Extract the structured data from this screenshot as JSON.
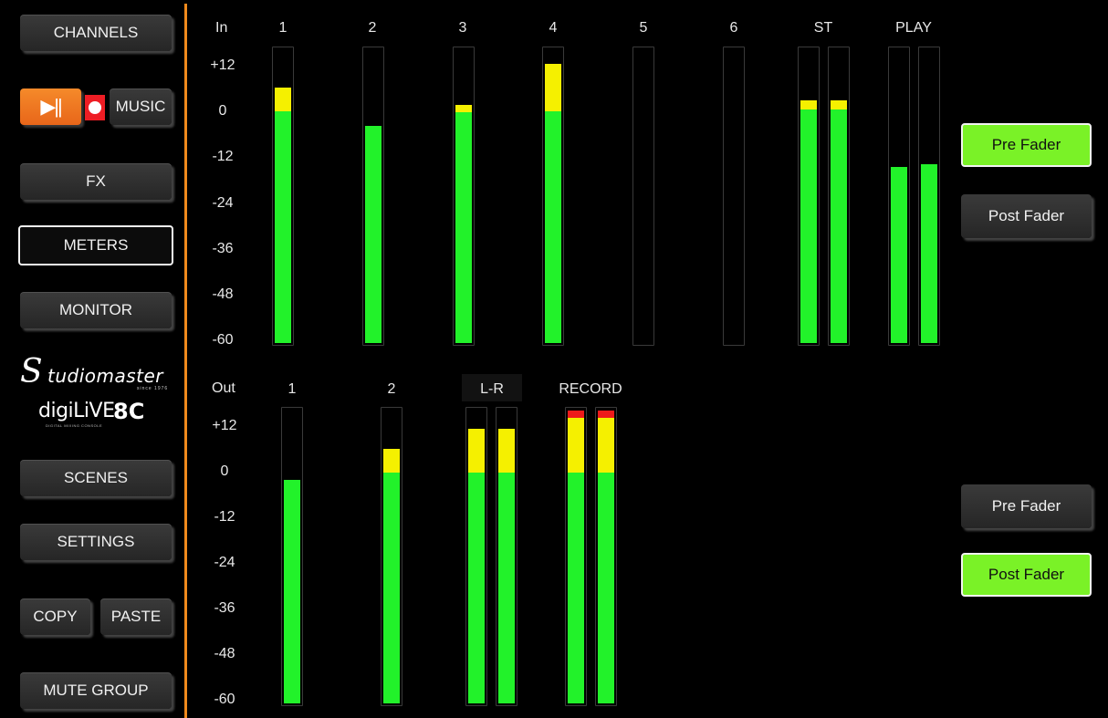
{
  "sidebar": {
    "channels": "CHANNELS",
    "music": "MUSIC",
    "play_pause_glyph": "▶||",
    "fx": "FX",
    "meters": "METERS",
    "monitor": "MONITOR",
    "scenes": "SCENES",
    "settings": "SETTINGS",
    "copy": "COPY",
    "paste": "PASTE",
    "mute_group": "MUTE GROUP",
    "logo_studiomaster": "Studiomaster",
    "logo_since": "since 1976",
    "logo_digilive_a": "digiLiVE",
    "logo_digilive_b": "8C",
    "logo_digilive_sub": "DIGITAL MIXING CONSOLE"
  },
  "input_section": {
    "label": "In",
    "scale": [
      "+12",
      "0",
      "-12",
      "-24",
      "-36",
      "-48",
      "-60"
    ],
    "channels": [
      {
        "label": "1",
        "bars": [
          {
            "green": 0.785,
            "yellow": 0.08,
            "red": 0
          }
        ]
      },
      {
        "label": "2",
        "bars": [
          {
            "green": 0.735,
            "yellow": 0,
            "red": 0
          }
        ]
      },
      {
        "label": "3",
        "bars": [
          {
            "green": 0.78,
            "yellow": 0.025,
            "red": 0
          }
        ]
      },
      {
        "label": "4",
        "bars": [
          {
            "green": 0.785,
            "yellow": 0.16,
            "red": 0
          }
        ]
      },
      {
        "label": "5",
        "bars": [
          {
            "green": 0,
            "yellow": 0,
            "red": 0
          }
        ]
      },
      {
        "label": "6",
        "bars": [
          {
            "green": 0,
            "yellow": 0,
            "red": 0
          }
        ]
      },
      {
        "label": "ST",
        "bars": [
          {
            "green": 0.79,
            "yellow": 0.03,
            "red": 0
          },
          {
            "green": 0.79,
            "yellow": 0.03,
            "red": 0
          }
        ]
      },
      {
        "label": "PLAY",
        "bars": [
          {
            "green": 0.595,
            "yellow": 0,
            "red": 0
          },
          {
            "green": 0.605,
            "yellow": 0,
            "red": 0
          }
        ]
      }
    ]
  },
  "output_section": {
    "label": "Out",
    "scale": [
      "+12",
      "0",
      "-12",
      "-24",
      "-36",
      "-48",
      "-60"
    ],
    "channels": [
      {
        "label": "1",
        "bars": [
          {
            "green": 0.755,
            "yellow": 0,
            "red": 0
          }
        ]
      },
      {
        "label": "2",
        "bars": [
          {
            "green": 0.78,
            "yellow": 0.08,
            "red": 0
          }
        ]
      },
      {
        "label": "L-R",
        "bars": [
          {
            "green": 0.78,
            "yellow": 0.15,
            "red": 0
          },
          {
            "green": 0.78,
            "yellow": 0.15,
            "red": 0
          }
        ]
      },
      {
        "label": "RECORD",
        "bars": [
          {
            "green": 0.78,
            "yellow": 0.185,
            "red": 0.025
          },
          {
            "green": 0.78,
            "yellow": 0.185,
            "red": 0.025
          }
        ]
      }
    ]
  },
  "fader_select": {
    "input": {
      "pre": "Pre Fader",
      "post": "Post Fader",
      "selected": "pre"
    },
    "output": {
      "pre": "Pre Fader",
      "post": "Post Fader",
      "selected": "post"
    }
  }
}
